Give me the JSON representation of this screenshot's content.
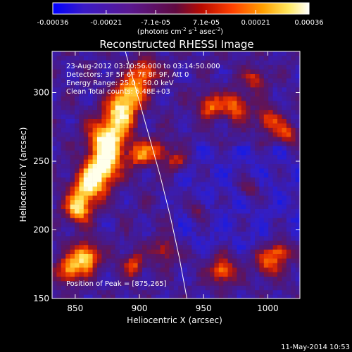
{
  "chart_data": {
    "type": "heatmap",
    "title": "Reconstructed RHESSI Image",
    "xlabel": "Heliocentric X (arcsec)",
    "ylabel": "Heliocentric Y (arcsec)",
    "xlim": [
      832,
      1025
    ],
    "ylim": [
      150,
      330
    ],
    "xticks": [
      "850",
      "900",
      "950",
      "1000"
    ],
    "xtick_values": [
      850,
      900,
      950,
      1000
    ],
    "yticks": [
      "150",
      "200",
      "250",
      "300"
    ],
    "ytick_values": [
      150,
      200,
      250,
      300
    ],
    "colorbar": {
      "min": -0.00036,
      "max": 0.00036,
      "tick_labels": [
        "-0.00036",
        "-0.00021",
        "-7.1e-05",
        "7.1e-05",
        "0.00021",
        "0.00036"
      ],
      "tick_values": [
        -0.00036,
        -0.00021,
        -7.1e-05,
        7.1e-05,
        0.00021,
        0.00036
      ],
      "units_parts": [
        "(photons cm",
        "-2",
        " s",
        "-1",
        " asec",
        "-2",
        ")"
      ]
    },
    "annotations": [
      "23-Aug-2012 03:10:56.000 to 03:14:50.000",
      "Detectors: 3F 5F 6F 7F 8F 9F, Att 0",
      "Energy Range: 25.0 - 50.0 keV",
      "Clean     Total counts: 6.48E+03"
    ],
    "peak_label": "Position of Peak = [875,265]",
    "peak": [
      875,
      265
    ],
    "grid": false,
    "limb_curve": [
      [
        889,
        330
      ],
      [
        898,
        300
      ],
      [
        907,
        270
      ],
      [
        916,
        240
      ],
      [
        924,
        210
      ],
      [
        931,
        180
      ],
      [
        937,
        150
      ]
    ]
  },
  "footer_date": "11-May-2014 10:53",
  "colors": {
    "background": "#000000",
    "text": "#ffffff",
    "colormap": [
      "#0018ff",
      "#2a1aa8",
      "#4a1b90",
      "#9a1a35",
      "#e82a00",
      "#ff8800",
      "#ffe860",
      "#fffff0"
    ]
  }
}
